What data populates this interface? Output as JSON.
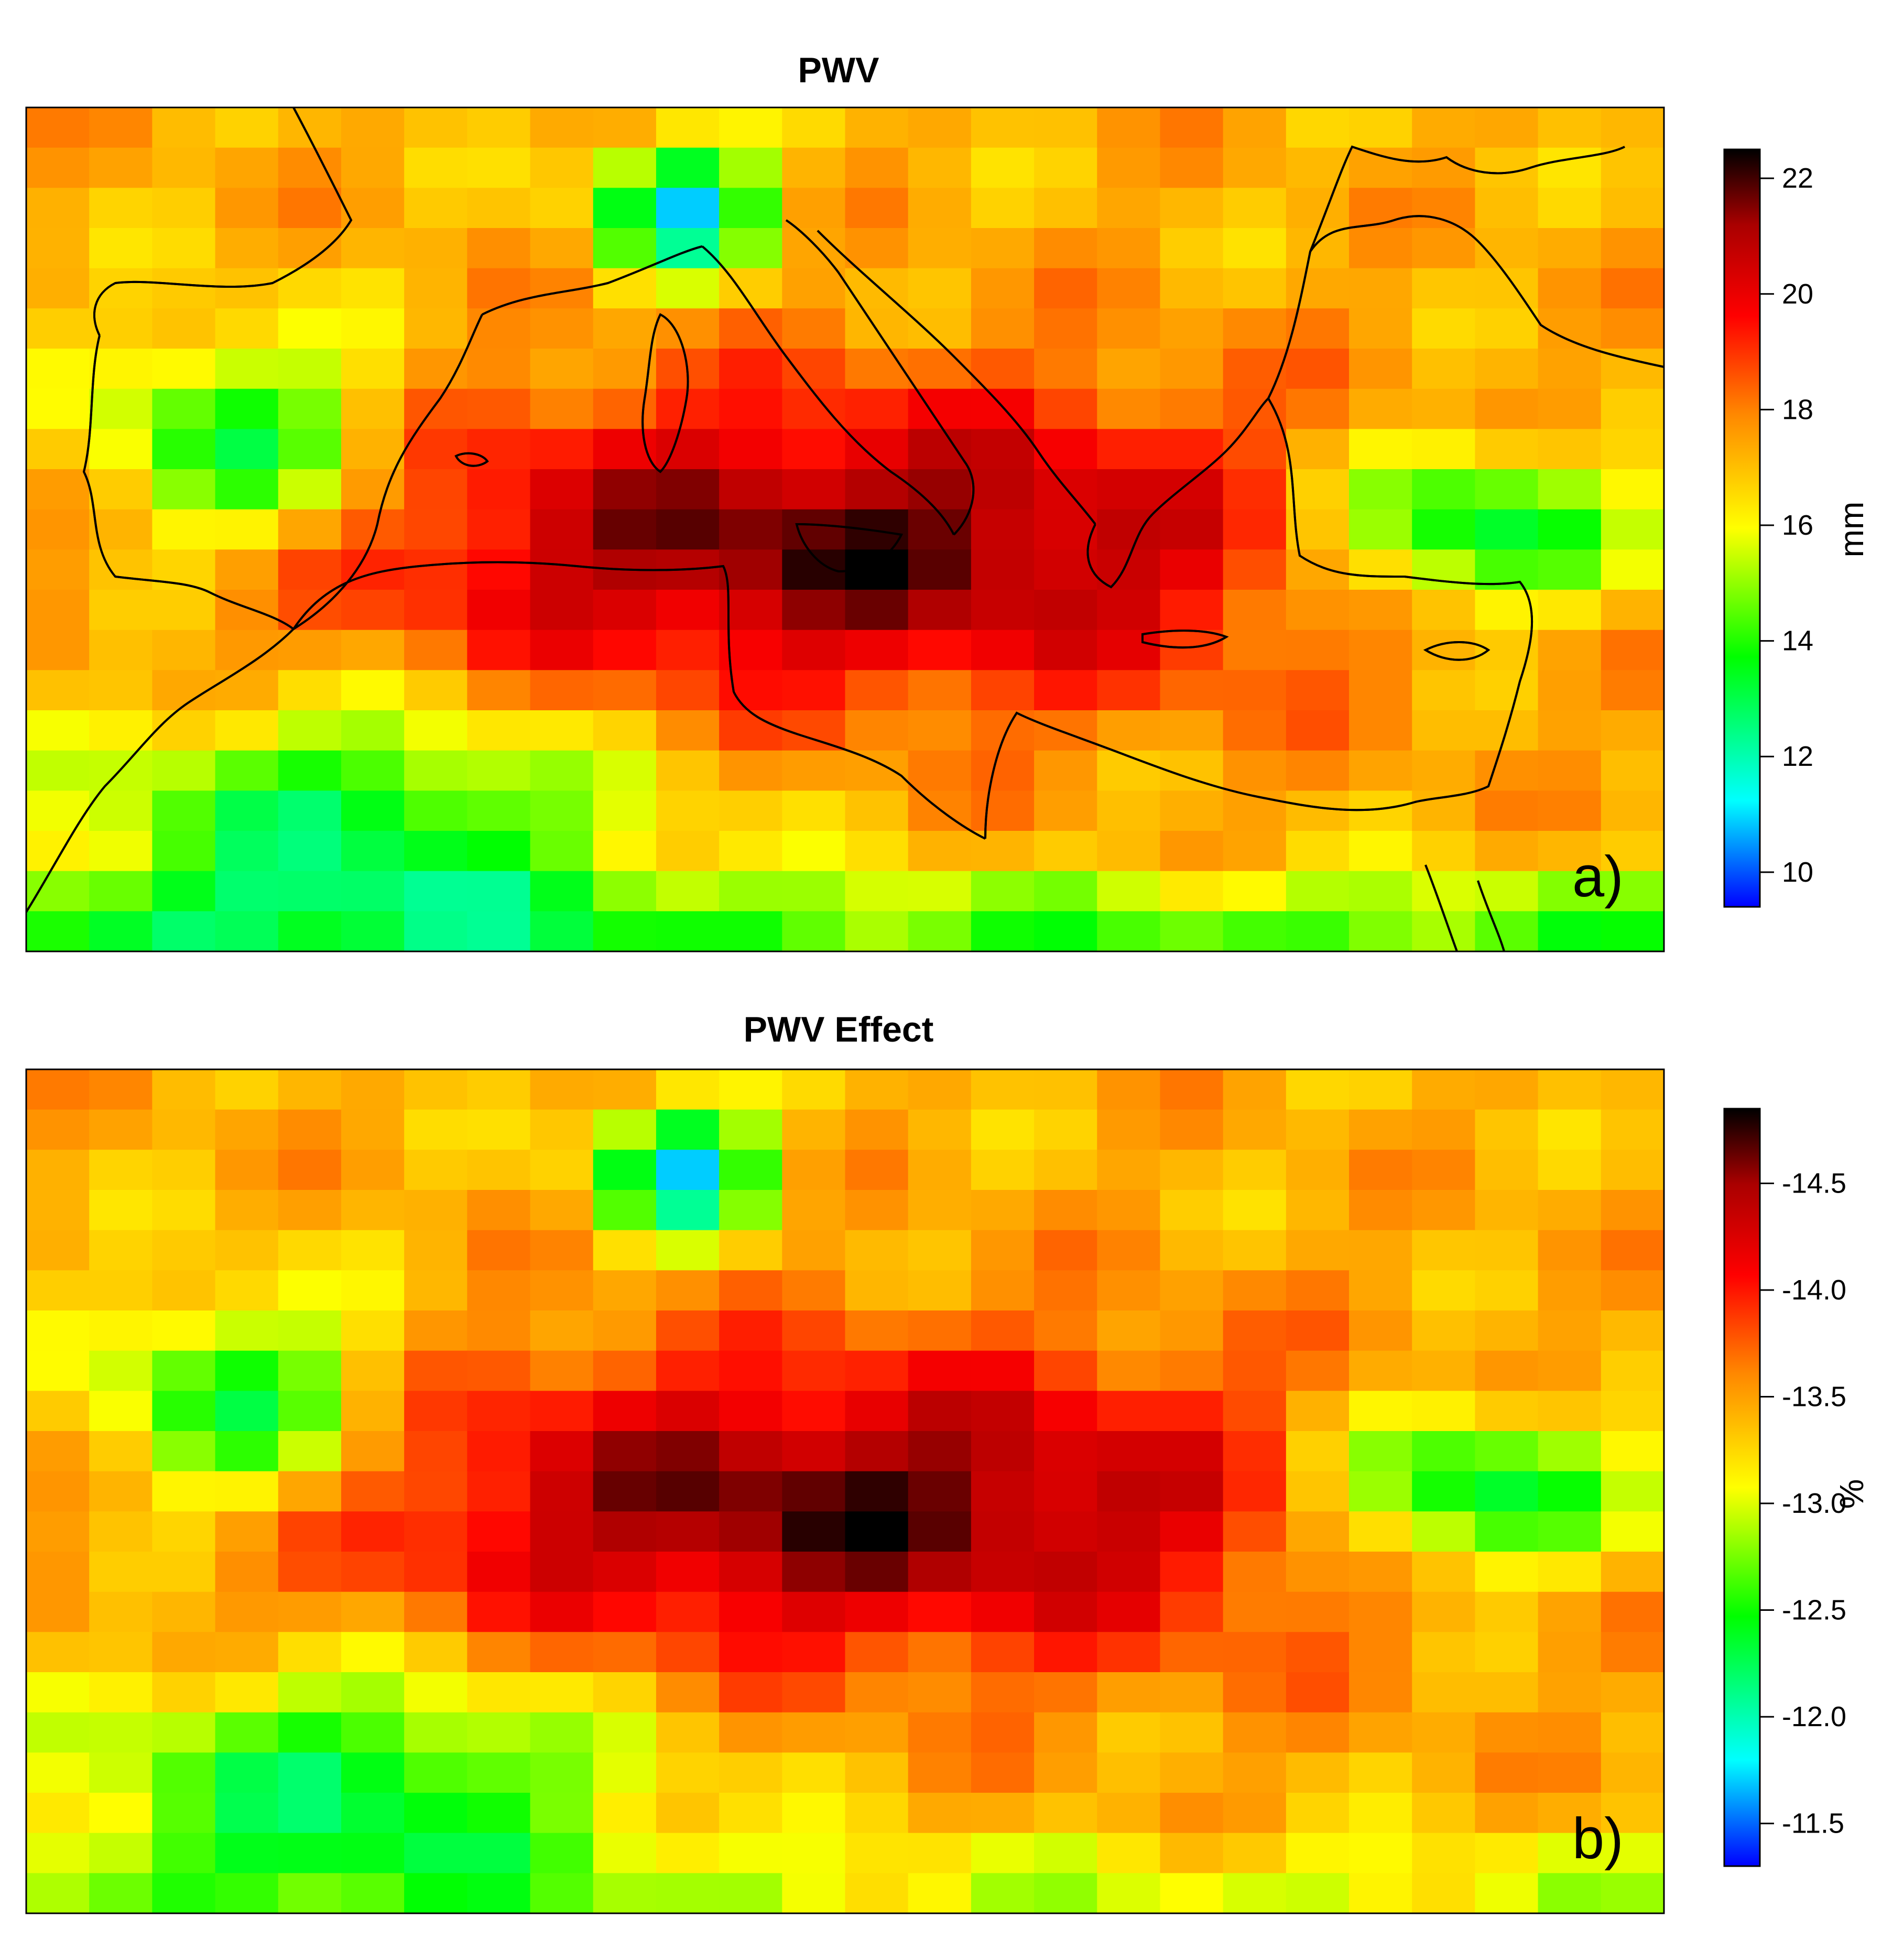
{
  "panels": [
    {
      "id": "a",
      "title": "PWV",
      "letter": "a)",
      "colorbar": {
        "unit": "mm",
        "ticks": [
          {
            "label": "22",
            "value": 22
          },
          {
            "label": "20",
            "value": 20
          },
          {
            "label": "18",
            "value": 18
          },
          {
            "label": "16",
            "value": 16
          },
          {
            "label": "14",
            "value": 14
          },
          {
            "label": "12",
            "value": 12
          },
          {
            "label": "10",
            "value": 10
          }
        ],
        "range": [
          9.4,
          22.5
        ]
      }
    },
    {
      "id": "b",
      "title": "PWV Effect",
      "letter": "b)",
      "colorbar": {
        "unit": "%",
        "ticks": [
          {
            "label": "-11.5",
            "value": -11.5
          },
          {
            "label": "-12.0",
            "value": -12.0
          },
          {
            "label": "-12.5",
            "value": -12.5
          },
          {
            "label": "-13.0",
            "value": -13.0
          },
          {
            "label": "-13.5",
            "value": -13.5
          },
          {
            "label": "-14.0",
            "value": -14.0
          },
          {
            "label": "-14.5",
            "value": -14.5
          }
        ],
        "range": [
          -11.3,
          -14.85
        ]
      }
    }
  ],
  "colors": {
    "scale": [
      "#0000ff",
      "#00ffff",
      "#00ff00",
      "#ffff00",
      "#ff8800",
      "#ff0000",
      "#aa0000",
      "#000000"
    ],
    "coastline": "#000000"
  }
}
